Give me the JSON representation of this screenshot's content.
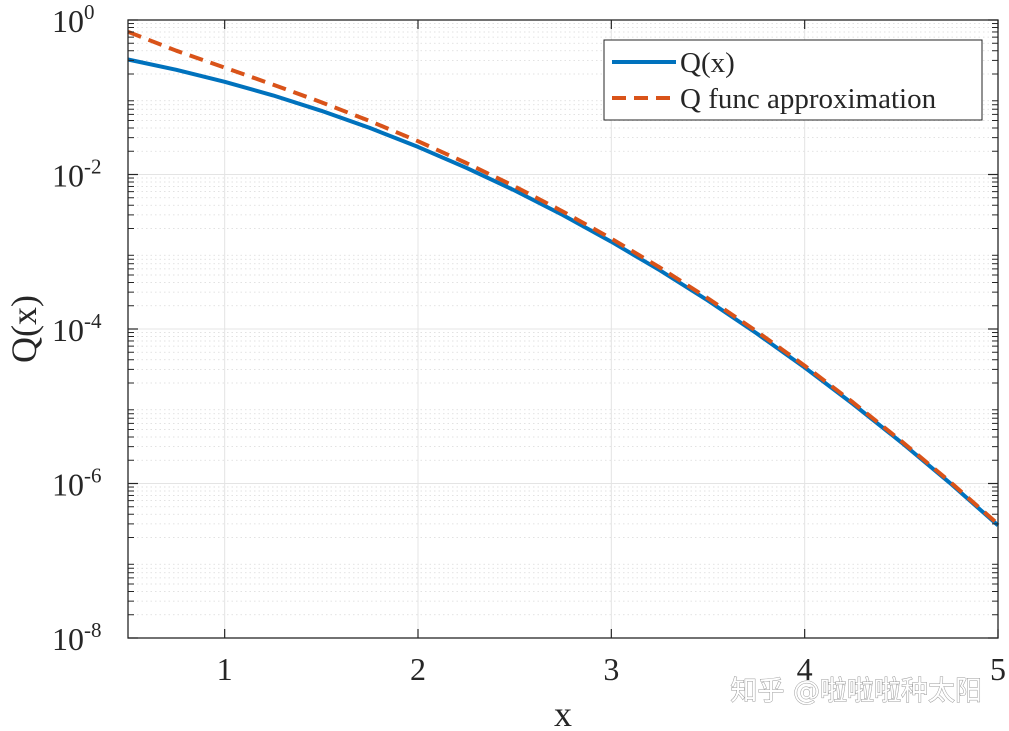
{
  "chart_data": {
    "type": "line",
    "xlabel": "x",
    "ylabel": "Q(x)",
    "xlim": [
      0.5,
      5
    ],
    "ylim": [
      1e-08,
      1
    ],
    "yscale": "log",
    "grid": true,
    "minor_grid": true,
    "legend_position": "top-right",
    "x_ticks": [
      {
        "value": 1,
        "label": "1"
      },
      {
        "value": 2,
        "label": "2"
      },
      {
        "value": 3,
        "label": "3"
      },
      {
        "value": 4,
        "label": "4"
      },
      {
        "value": 5,
        "label": "5"
      }
    ],
    "y_ticks": [
      {
        "value": 1e-08,
        "base": "10",
        "exp": "-8"
      },
      {
        "value": 1e-06,
        "base": "10",
        "exp": "-6"
      },
      {
        "value": 0.0001,
        "base": "10",
        "exp": "-4"
      },
      {
        "value": 0.01,
        "base": "10",
        "exp": "-2"
      },
      {
        "value": 1,
        "base": "10",
        "exp": "0"
      }
    ],
    "series": [
      {
        "name": "Q(x)",
        "color": "#0072BD",
        "line_style": "solid",
        "x": [
          0.5,
          0.75,
          1.0,
          1.25,
          1.5,
          1.75,
          2.0,
          2.25,
          2.5,
          2.75,
          3.0,
          3.25,
          3.5,
          3.75,
          4.0,
          4.25,
          4.5,
          4.75,
          5.0
        ],
        "y": [
          0.3085,
          0.2266,
          0.1587,
          0.1056,
          0.0668,
          0.0401,
          0.02275,
          0.01222,
          0.00621,
          0.00298,
          0.00135,
          0.000577,
          0.000233,
          8.84e-05,
          3.17e-05,
          1.07e-05,
          3.4e-06,
          1.02e-06,
          2.87e-07
        ]
      },
      {
        "name": "Q func approximation",
        "color": "#D95319",
        "line_style": "dashed",
        "x": [
          0.5,
          0.75,
          1.0,
          1.25,
          1.5,
          1.75,
          2.0,
          2.25,
          2.5,
          2.75,
          3.0,
          3.25,
          3.5,
          3.75,
          4.0,
          4.25,
          4.5,
          4.75,
          5.0
        ],
        "y": [
          0.7041,
          0.4008,
          0.242,
          0.146,
          0.0863,
          0.0493,
          0.027,
          0.0141,
          0.00701,
          0.00331,
          0.00148,
          0.000627,
          0.000249,
          9.39e-05,
          3.35e-05,
          1.12e-05,
          3.54e-06,
          1.06e-06,
          2.97e-07
        ]
      }
    ]
  },
  "watermark": "知乎 @啦啦啦种太阳"
}
